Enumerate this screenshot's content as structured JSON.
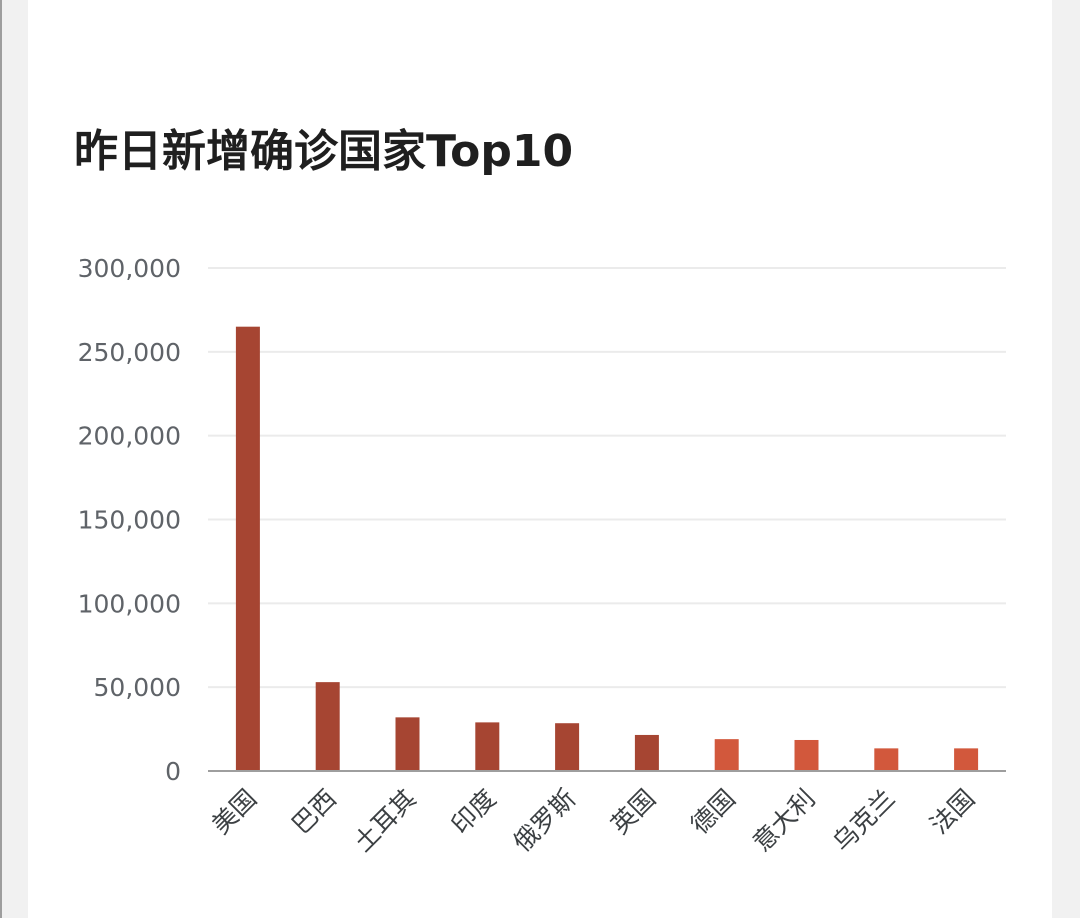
{
  "chart_data": {
    "type": "bar",
    "title": "昨日新增确诊国家Top10",
    "categories": [
      "美国",
      "巴西",
      "土耳其",
      "印度",
      "俄罗斯",
      "英国",
      "德国",
      "意大利",
      "乌克兰",
      "法国"
    ],
    "values": [
      265000,
      53000,
      32000,
      29000,
      28500,
      21500,
      19000,
      18500,
      13500,
      13500
    ],
    "ylim": [
      0,
      300000
    ],
    "yticks": [
      0,
      50000,
      100000,
      150000,
      200000,
      250000,
      300000
    ],
    "ytick_labels": [
      "0",
      "50,000",
      "100,000",
      "150,000",
      "200,000",
      "250,000",
      "300,000"
    ],
    "grid": true,
    "colors": {
      "dark_bar": "#a64532",
      "light_bar": "#d2583c",
      "gridline": "#ebebeb",
      "baseline": "#9e9e9e"
    },
    "bar_color_index": [
      0,
      0,
      0,
      0,
      0,
      0,
      1,
      1,
      1,
      1
    ]
  }
}
